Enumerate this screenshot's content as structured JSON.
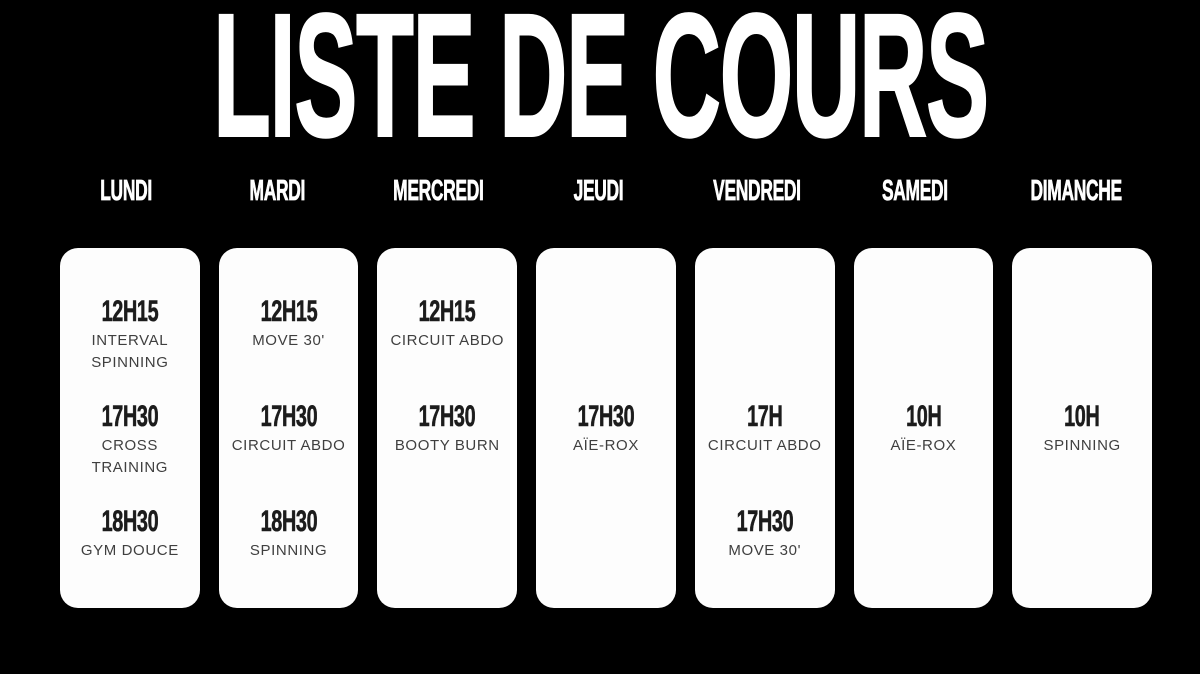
{
  "title": "LISTE DE COURS",
  "colors": {
    "background": "#000000",
    "card": "#fdfdfd",
    "heading_text": "#ffffff",
    "time_text": "#1c1c1c",
    "name_text": "#3f3f3f"
  },
  "days": [
    {
      "label": "LUNDI",
      "slots": [
        {
          "time": "12H15",
          "name": "INTERVAL SPINNING"
        },
        {
          "time": "17H30",
          "name": "CROSS TRAINING"
        },
        {
          "time": "18H30",
          "name": "GYM DOUCE"
        }
      ]
    },
    {
      "label": "MARDI",
      "slots": [
        {
          "time": "12H15",
          "name": "MOVE 30'"
        },
        {
          "time": "17H30",
          "name": "CIRCUIT ABDO"
        },
        {
          "time": "18H30",
          "name": "SPINNING"
        }
      ]
    },
    {
      "label": "MERCREDI",
      "slots": [
        {
          "time": "12H15",
          "name": "CIRCUIT ABDO"
        },
        {
          "time": "17H30",
          "name": "BOOTY BURN"
        },
        null
      ]
    },
    {
      "label": "JEUDI",
      "slots": [
        null,
        {
          "time": "17H30",
          "name": "AÏE-ROX"
        },
        null
      ]
    },
    {
      "label": "VENDREDI",
      "slots": [
        null,
        {
          "time": "17H",
          "name": "CIRCUIT ABDO"
        },
        {
          "time": "17H30",
          "name": "MOVE 30'"
        }
      ]
    },
    {
      "label": "SAMEDI",
      "slots": [
        null,
        {
          "time": "10H",
          "name": "AÏE-ROX"
        },
        null
      ]
    },
    {
      "label": "DIMANCHE",
      "slots": [
        null,
        {
          "time": "10H",
          "name": "SPINNING"
        },
        null
      ]
    }
  ]
}
